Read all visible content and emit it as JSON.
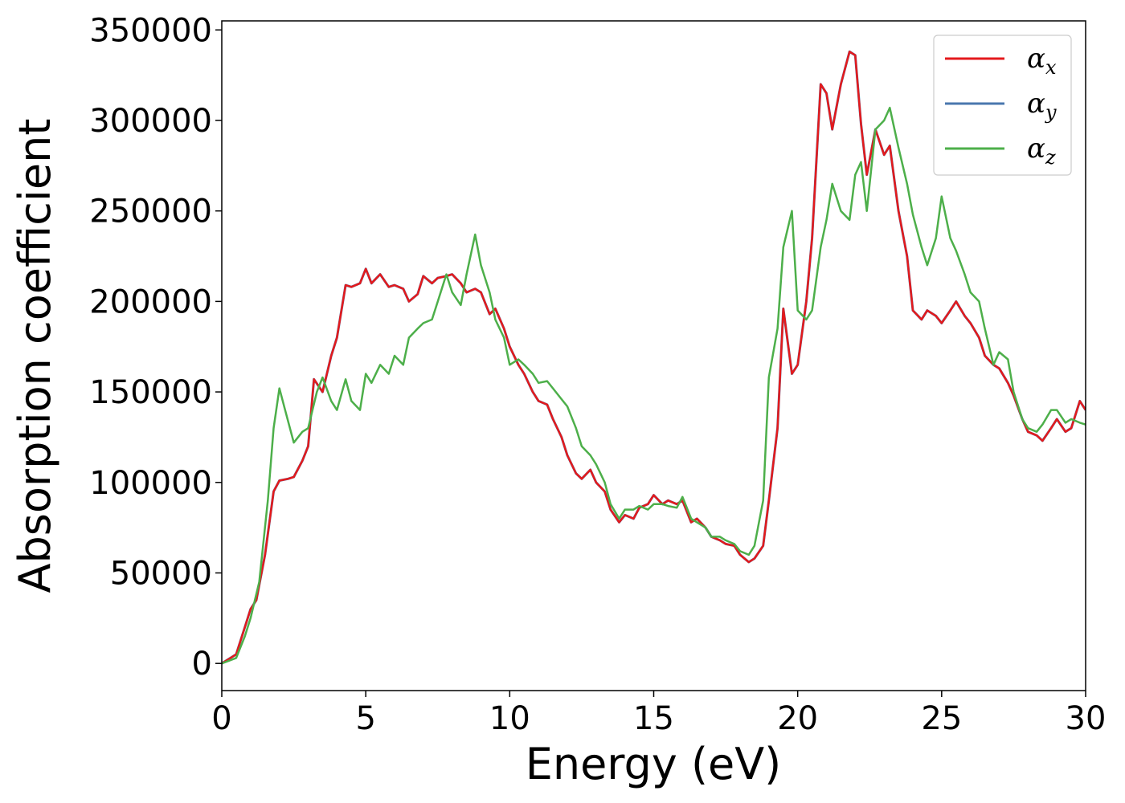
{
  "chart_data": {
    "type": "line",
    "xlabel": "Energy (eV)",
    "ylabel": "Absorption coefficient",
    "xlim": [
      0,
      30
    ],
    "ylim": [
      -15000,
      355000
    ],
    "xticks": [
      "0",
      "5",
      "10",
      "15",
      "20",
      "25",
      "30"
    ],
    "yticks": [
      "0",
      "50000",
      "100000",
      "150000",
      "200000",
      "250000",
      "300000",
      "350000"
    ],
    "grid": false,
    "legend_position": "top-right",
    "series": [
      {
        "name": "αx",
        "legend_base": "α",
        "legend_sub": "x",
        "color": "#e41a1c",
        "x": [
          0,
          0.5,
          0.8,
          1.0,
          1.2,
          1.5,
          1.8,
          2.0,
          2.3,
          2.5,
          2.8,
          3.0,
          3.2,
          3.5,
          3.8,
          4.0,
          4.3,
          4.5,
          4.8,
          5.0,
          5.2,
          5.5,
          5.8,
          6.0,
          6.3,
          6.5,
          6.8,
          7.0,
          7.3,
          7.5,
          7.8,
          8.0,
          8.3,
          8.5,
          8.8,
          9.0,
          9.3,
          9.5,
          9.8,
          10.0,
          10.3,
          10.5,
          10.8,
          11.0,
          11.3,
          11.5,
          11.8,
          12.0,
          12.3,
          12.5,
          12.8,
          13.0,
          13.3,
          13.5,
          13.8,
          14.0,
          14.3,
          14.5,
          14.8,
          15.0,
          15.3,
          15.5,
          15.8,
          16.0,
          16.3,
          16.5,
          16.8,
          17.0,
          17.3,
          17.5,
          17.8,
          18.0,
          18.3,
          18.5,
          18.8,
          19.0,
          19.3,
          19.5,
          19.8,
          20.0,
          20.3,
          20.5,
          20.8,
          21.0,
          21.2,
          21.5,
          21.8,
          22.0,
          22.2,
          22.4,
          22.7,
          23.0,
          23.2,
          23.5,
          23.8,
          24.0,
          24.3,
          24.5,
          24.8,
          25.0,
          25.3,
          25.5,
          25.8,
          26.0,
          26.3,
          26.5,
          26.8,
          27.0,
          27.3,
          27.5,
          27.8,
          28.0,
          28.3,
          28.5,
          28.8,
          29.0,
          29.3,
          29.5,
          29.8,
          30.0
        ],
        "y": [
          0,
          5000,
          20000,
          30000,
          35000,
          60000,
          95000,
          101000,
          102000,
          103000,
          112000,
          120000,
          157000,
          150000,
          170000,
          180000,
          209000,
          208000,
          210000,
          218000,
          210000,
          215000,
          208000,
          209000,
          207000,
          200000,
          204000,
          214000,
          210000,
          213000,
          214000,
          215000,
          210000,
          205000,
          207000,
          205000,
          193000,
          196000,
          185000,
          175000,
          165000,
          160000,
          150000,
          145000,
          143000,
          135000,
          125000,
          115000,
          105000,
          102000,
          107000,
          100000,
          95000,
          85000,
          78000,
          82000,
          80000,
          86000,
          88000,
          93000,
          88000,
          90000,
          88000,
          90000,
          78000,
          80000,
          75000,
          70000,
          68000,
          66000,
          65000,
          60000,
          56000,
          58000,
          65000,
          90000,
          130000,
          196000,
          160000,
          165000,
          200000,
          235000,
          320000,
          315000,
          295000,
          320000,
          338000,
          336000,
          298000,
          270000,
          295000,
          281000,
          286000,
          250000,
          225000,
          195000,
          190000,
          195000,
          192000,
          188000,
          195000,
          200000,
          192000,
          188000,
          180000,
          170000,
          165000,
          163000,
          155000,
          148000,
          135000,
          128000,
          126000,
          123000,
          130000,
          135000,
          128000,
          130000,
          145000,
          140000
        ]
      },
      {
        "name": "αy",
        "legend_base": "α",
        "legend_sub": "y",
        "color": "#4a77ae",
        "x": [
          0,
          0.5,
          0.8,
          1.0,
          1.2,
          1.5,
          1.8,
          2.0,
          2.3,
          2.5,
          2.8,
          3.0,
          3.2,
          3.5,
          3.8,
          4.0,
          4.3,
          4.5,
          4.8,
          5.0,
          5.2,
          5.5,
          5.8,
          6.0,
          6.3,
          6.5,
          6.8,
          7.0,
          7.3,
          7.5,
          7.8,
          8.0,
          8.3,
          8.5,
          8.8,
          9.0,
          9.3,
          9.5,
          9.8,
          10.0,
          10.3,
          10.5,
          10.8,
          11.0,
          11.3,
          11.5,
          11.8,
          12.0,
          12.3,
          12.5,
          12.8,
          13.0,
          13.3,
          13.5,
          13.8,
          14.0,
          14.3,
          14.5,
          14.8,
          15.0,
          15.3,
          15.5,
          15.8,
          16.0,
          16.3,
          16.5,
          16.8,
          17.0,
          17.3,
          17.5,
          17.8,
          18.0,
          18.3,
          18.5,
          18.8,
          19.0,
          19.3,
          19.5,
          19.8,
          20.0,
          20.3,
          20.5,
          20.8,
          21.0,
          21.2,
          21.5,
          21.8,
          22.0,
          22.2,
          22.4,
          22.7,
          23.0,
          23.2,
          23.5,
          23.8,
          24.0,
          24.3,
          24.5,
          24.8,
          25.0,
          25.3,
          25.5,
          25.8,
          26.0,
          26.3,
          26.5,
          26.8,
          27.0,
          27.3,
          27.5,
          27.8,
          28.0,
          28.3,
          28.5,
          28.8,
          29.0,
          29.3,
          29.5,
          29.8,
          30.0
        ],
        "y": [
          0,
          5000,
          20000,
          30000,
          35000,
          60000,
          95000,
          101000,
          102000,
          103000,
          112000,
          120000,
          157000,
          150000,
          170000,
          180000,
          209000,
          208000,
          210000,
          218000,
          210000,
          215000,
          208000,
          209000,
          207000,
          200000,
          204000,
          214000,
          210000,
          213000,
          214000,
          215000,
          210000,
          205000,
          207000,
          205000,
          193000,
          196000,
          185000,
          175000,
          165000,
          160000,
          150000,
          145000,
          143000,
          135000,
          125000,
          115000,
          105000,
          102000,
          107000,
          100000,
          95000,
          85000,
          78000,
          82000,
          80000,
          86000,
          88000,
          93000,
          88000,
          90000,
          88000,
          90000,
          78000,
          80000,
          75000,
          70000,
          68000,
          66000,
          65000,
          60000,
          56000,
          58000,
          65000,
          90000,
          130000,
          196000,
          160000,
          165000,
          200000,
          235000,
          320000,
          315000,
          295000,
          320000,
          338000,
          336000,
          298000,
          270000,
          295000,
          281000,
          286000,
          250000,
          225000,
          195000,
          190000,
          195000,
          192000,
          188000,
          195000,
          200000,
          192000,
          188000,
          180000,
          170000,
          165000,
          163000,
          155000,
          148000,
          135000,
          128000,
          126000,
          123000,
          130000,
          135000,
          128000,
          130000,
          145000,
          140000
        ]
      },
      {
        "name": "αz",
        "legend_base": "α",
        "legend_sub": "z",
        "color": "#4daf4a",
        "x": [
          0,
          0.5,
          0.8,
          1.0,
          1.3,
          1.6,
          1.8,
          2.0,
          2.2,
          2.5,
          2.8,
          3.0,
          3.3,
          3.5,
          3.8,
          4.0,
          4.3,
          4.5,
          4.8,
          5.0,
          5.2,
          5.5,
          5.8,
          6.0,
          6.3,
          6.5,
          6.8,
          7.0,
          7.3,
          7.5,
          7.8,
          8.0,
          8.3,
          8.5,
          8.8,
          9.0,
          9.3,
          9.5,
          9.8,
          10.0,
          10.3,
          10.5,
          10.8,
          11.0,
          11.3,
          11.5,
          11.8,
          12.0,
          12.3,
          12.5,
          12.8,
          13.0,
          13.3,
          13.5,
          13.8,
          14.0,
          14.3,
          14.5,
          14.8,
          15.0,
          15.3,
          15.5,
          15.8,
          16.0,
          16.3,
          16.5,
          16.8,
          17.0,
          17.3,
          17.5,
          17.8,
          18.0,
          18.3,
          18.5,
          18.8,
          19.0,
          19.3,
          19.5,
          19.8,
          20.0,
          20.3,
          20.5,
          20.8,
          21.0,
          21.2,
          21.5,
          21.8,
          22.0,
          22.2,
          22.4,
          22.7,
          23.0,
          23.2,
          23.5,
          23.8,
          24.0,
          24.3,
          24.5,
          24.8,
          25.0,
          25.3,
          25.5,
          25.8,
          26.0,
          26.3,
          26.5,
          26.8,
          27.0,
          27.3,
          27.5,
          27.8,
          28.0,
          28.3,
          28.5,
          28.8,
          29.0,
          29.3,
          29.5,
          29.8,
          30.0
        ],
        "y": [
          0,
          3000,
          15000,
          25000,
          45000,
          90000,
          130000,
          152000,
          140000,
          122000,
          128000,
          130000,
          150000,
          158000,
          145000,
          140000,
          157000,
          145000,
          140000,
          160000,
          155000,
          165000,
          160000,
          170000,
          165000,
          180000,
          185000,
          188000,
          190000,
          200000,
          215000,
          205000,
          198000,
          215000,
          237000,
          220000,
          205000,
          190000,
          180000,
          165000,
          168000,
          165000,
          160000,
          155000,
          156000,
          152000,
          146000,
          142000,
          130000,
          120000,
          115000,
          110000,
          100000,
          88000,
          80000,
          85000,
          85000,
          87000,
          85000,
          88000,
          88000,
          87000,
          86000,
          92000,
          80000,
          78000,
          75000,
          70000,
          70000,
          68000,
          66000,
          62000,
          60000,
          65000,
          90000,
          158000,
          185000,
          230000,
          250000,
          195000,
          190000,
          195000,
          230000,
          245000,
          265000,
          250000,
          245000,
          270000,
          277000,
          250000,
          295000,
          300000,
          307000,
          285000,
          265000,
          248000,
          230000,
          220000,
          235000,
          258000,
          235000,
          228000,
          215000,
          205000,
          200000,
          185000,
          165000,
          172000,
          168000,
          150000,
          135000,
          130000,
          128000,
          132000,
          140000,
          140000,
          133000,
          135000,
          133000,
          132000
        ]
      }
    ]
  }
}
